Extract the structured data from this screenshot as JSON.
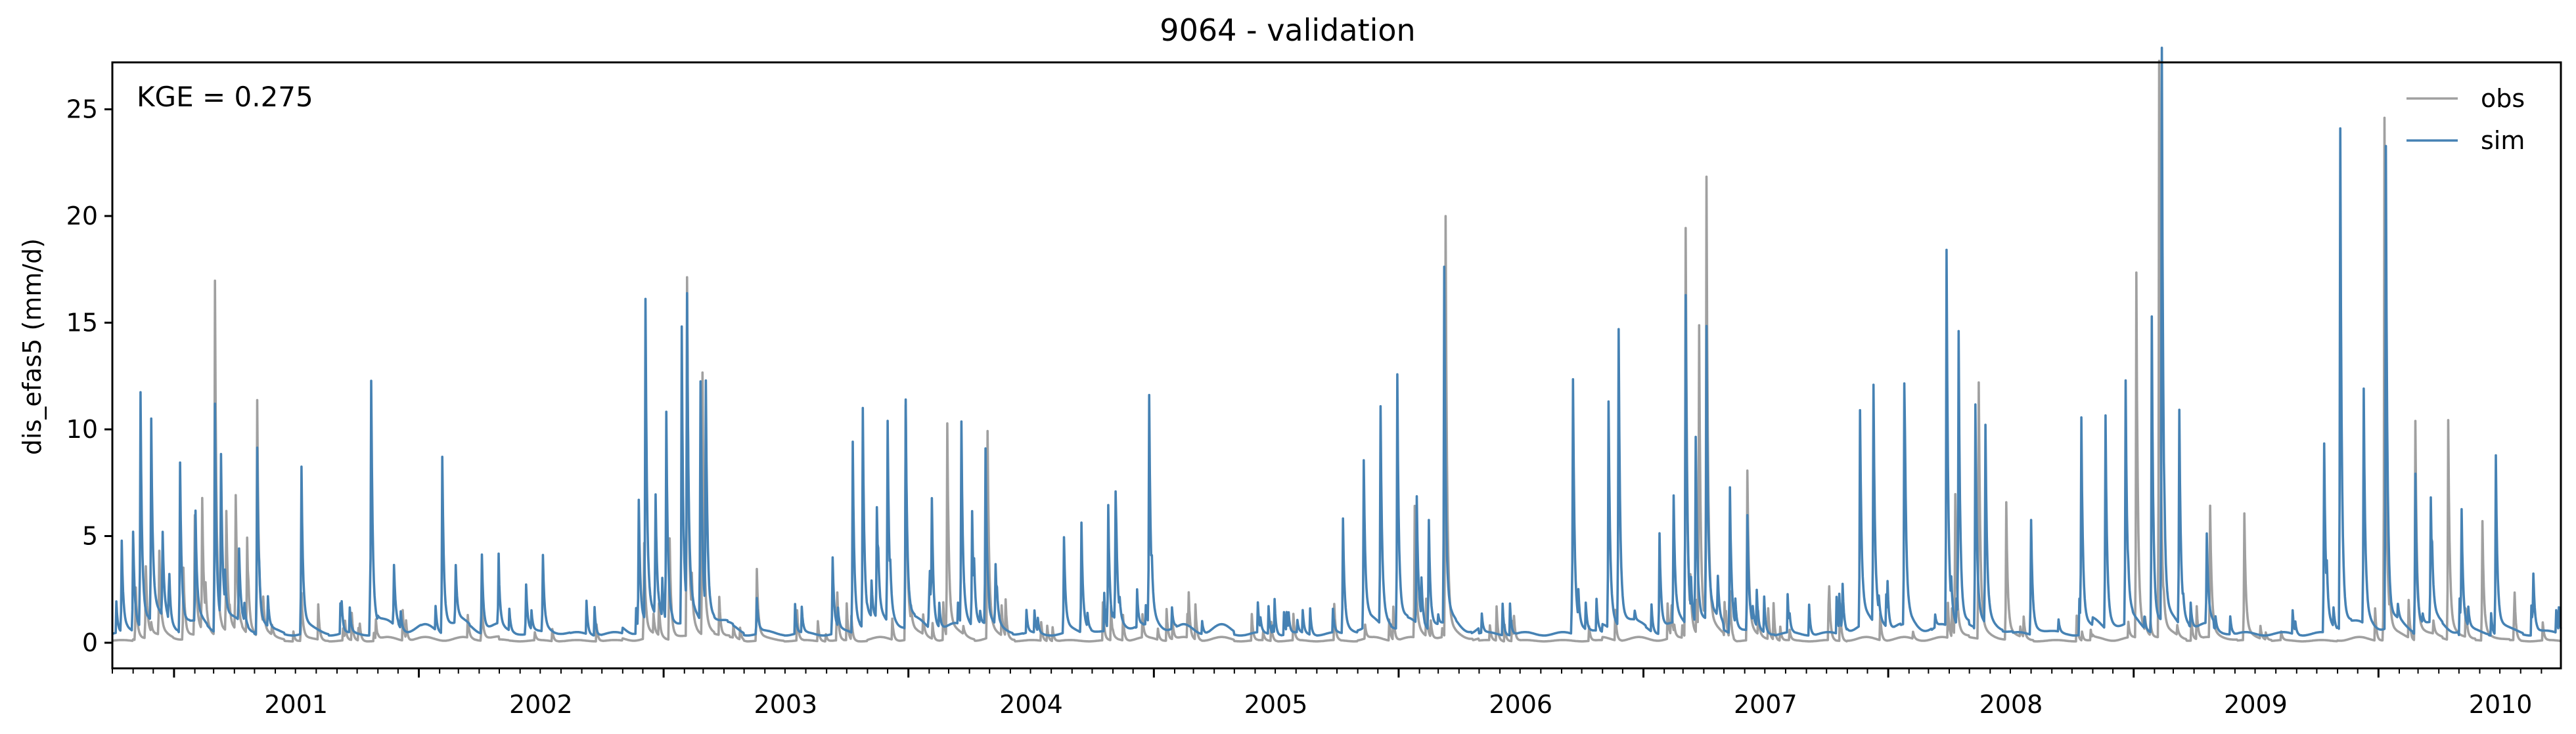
{
  "chart_data": {
    "type": "line",
    "title": "9064 - validation",
    "xlabel": "",
    "ylabel": "dis_efas5 (mm/d)",
    "annotation": "KGE = 0.275",
    "xlim": [
      "2000-10-01",
      "2010-09-30"
    ],
    "ylim": [
      -1.2,
      27.2
    ],
    "y_ticks": [
      0,
      5,
      10,
      15,
      20,
      25
    ],
    "x_tick_labels": [
      "2001",
      "2002",
      "2003",
      "2004",
      "2005",
      "2006",
      "2007",
      "2008",
      "2009",
      "2010"
    ],
    "grid": false,
    "legend_position": "top-right",
    "series": [
      {
        "name": "obs",
        "color": "#a0a0a0",
        "baseline": 0.05,
        "peaks": [
          [
            "2000-11-05",
            2.2
          ],
          [
            "2000-11-20",
            3.0
          ],
          [
            "2000-12-10",
            3.5
          ],
          [
            "2001-01-15",
            3.0
          ],
          [
            "2001-02-01",
            5.0
          ],
          [
            "2001-02-12",
            5.5
          ],
          [
            "2001-03-03",
            15.6
          ],
          [
            "2001-03-20",
            5.0
          ],
          [
            "2001-04-03",
            5.6
          ],
          [
            "2001-04-20",
            4.0
          ],
          [
            "2001-05-05",
            9.7
          ],
          [
            "2001-07-10",
            2.0
          ],
          [
            "2002-04-05",
            1.5
          ],
          [
            "2002-12-03",
            4.0
          ],
          [
            "2003-01-10",
            3.5
          ],
          [
            "2003-02-05",
            15.8
          ],
          [
            "2003-02-28",
            11.3
          ],
          [
            "2003-05-20",
            3.0
          ],
          [
            "2003-12-28",
            10.0
          ],
          [
            "2004-02-28",
            9.0
          ],
          [
            "2004-04-28",
            8.7
          ],
          [
            "2006-01-25",
            5.5
          ],
          [
            "2006-03-12",
            18.7
          ],
          [
            "2007-03-05",
            18.2
          ],
          [
            "2007-03-25",
            13.3
          ],
          [
            "2007-04-05",
            19.8
          ],
          [
            "2007-06-05",
            7.1
          ],
          [
            "2008-05-15",
            11.0
          ],
          [
            "2008-06-25",
            5.8
          ],
          [
            "2008-04-10",
            6.0
          ],
          [
            "2009-01-05",
            16.1
          ],
          [
            "2009-02-08",
            26.0
          ],
          [
            "2009-04-25",
            5.5
          ],
          [
            "2009-06-15",
            5.3
          ],
          [
            "2010-01-10",
            23.1
          ],
          [
            "2010-02-25",
            9.3
          ],
          [
            "2010-04-15",
            9.3
          ],
          [
            "2010-06-05",
            5.0
          ]
        ]
      },
      {
        "name": "sim",
        "color": "#4682b4",
        "baseline": 0.3,
        "peaks": [
          [
            "2000-10-15",
            3.8
          ],
          [
            "2000-11-01",
            4.0
          ],
          [
            "2000-11-12",
            10.0
          ],
          [
            "2000-11-28",
            8.4
          ],
          [
            "2000-12-15",
            3.5
          ],
          [
            "2001-01-10",
            7.1
          ],
          [
            "2001-02-02",
            4.6
          ],
          [
            "2001-03-03",
            9.7
          ],
          [
            "2001-03-12",
            6.8
          ],
          [
            "2001-04-08",
            3.0
          ],
          [
            "2001-05-05",
            7.8
          ],
          [
            "2001-07-10",
            7.0
          ],
          [
            "2001-10-22",
            10.3
          ],
          [
            "2001-11-25",
            2.5
          ],
          [
            "2002-02-05",
            7.4
          ],
          [
            "2002-02-25",
            2.4
          ],
          [
            "2002-04-05",
            3.3
          ],
          [
            "2002-04-30",
            2.9
          ],
          [
            "2002-06-10",
            2.1
          ],
          [
            "2002-07-05",
            3.2
          ],
          [
            "2002-11-25",
            5.4
          ],
          [
            "2002-12-05",
            14.0
          ],
          [
            "2002-12-20",
            5.0
          ],
          [
            "2003-01-05",
            8.9
          ],
          [
            "2003-01-28",
            12.9
          ],
          [
            "2003-02-05",
            13.5
          ],
          [
            "2003-02-25",
            10.2
          ],
          [
            "2003-03-05",
            9.7
          ],
          [
            "2003-05-20",
            1.5
          ],
          [
            "2003-09-10",
            3.2
          ],
          [
            "2003-10-10",
            8.0
          ],
          [
            "2003-10-25",
            9.3
          ],
          [
            "2003-11-15",
            4.6
          ],
          [
            "2003-12-01",
            8.4
          ],
          [
            "2003-12-28",
            9.7
          ],
          [
            "2004-02-05",
            5.0
          ],
          [
            "2004-03-20",
            8.5
          ],
          [
            "2004-04-05",
            4.8
          ],
          [
            "2004-04-25",
            7.3
          ],
          [
            "2004-05-10",
            2.5
          ],
          [
            "2004-08-20",
            4.0
          ],
          [
            "2004-09-15",
            4.6
          ],
          [
            "2004-10-25",
            5.2
          ],
          [
            "2004-11-05",
            5.4
          ],
          [
            "2004-12-25",
            9.7
          ],
          [
            "2005-10-10",
            4.8
          ],
          [
            "2005-11-10",
            7.0
          ],
          [
            "2005-12-05",
            9.2
          ],
          [
            "2005-12-30",
            10.9
          ],
          [
            "2006-01-28",
            5.0
          ],
          [
            "2006-02-15",
            4.6
          ],
          [
            "2006-03-10",
            15.7
          ],
          [
            "2006-09-18",
            10.5
          ],
          [
            "2006-11-10",
            9.6
          ],
          [
            "2006-11-25",
            12.9
          ],
          [
            "2007-01-25",
            4.2
          ],
          [
            "2007-02-15",
            5.3
          ],
          [
            "2007-03-05",
            14.4
          ],
          [
            "2007-03-20",
            7.8
          ],
          [
            "2007-04-05",
            12.7
          ],
          [
            "2007-05-10",
            6.1
          ],
          [
            "2007-06-05",
            4.8
          ],
          [
            "2007-10-25",
            2.0
          ],
          [
            "2007-11-20",
            9.1
          ],
          [
            "2007-12-10",
            10.1
          ],
          [
            "2008-01-25",
            8.7
          ],
          [
            "2008-03-28",
            16.6
          ],
          [
            "2008-04-15",
            12.6
          ],
          [
            "2008-05-10",
            9.5
          ],
          [
            "2008-05-25",
            8.3
          ],
          [
            "2008-08-01",
            4.8
          ],
          [
            "2008-10-15",
            8.8
          ],
          [
            "2008-11-20",
            9.0
          ],
          [
            "2008-12-20",
            10.4
          ],
          [
            "2009-01-28",
            13.8
          ],
          [
            "2009-02-12",
            25.8
          ],
          [
            "2009-03-10",
            9.1
          ],
          [
            "2009-04-20",
            3.8
          ],
          [
            "2009-10-12",
            7.9
          ],
          [
            "2009-11-05",
            22.5
          ],
          [
            "2009-12-10",
            10.0
          ],
          [
            "2010-01-12",
            21.6
          ],
          [
            "2010-02-25",
            6.7
          ],
          [
            "2010-03-20",
            5.2
          ],
          [
            "2010-05-05",
            4.9
          ],
          [
            "2010-06-25",
            7.5
          ],
          [
            "2010-08-20",
            2.3
          ]
        ]
      }
    ]
  }
}
